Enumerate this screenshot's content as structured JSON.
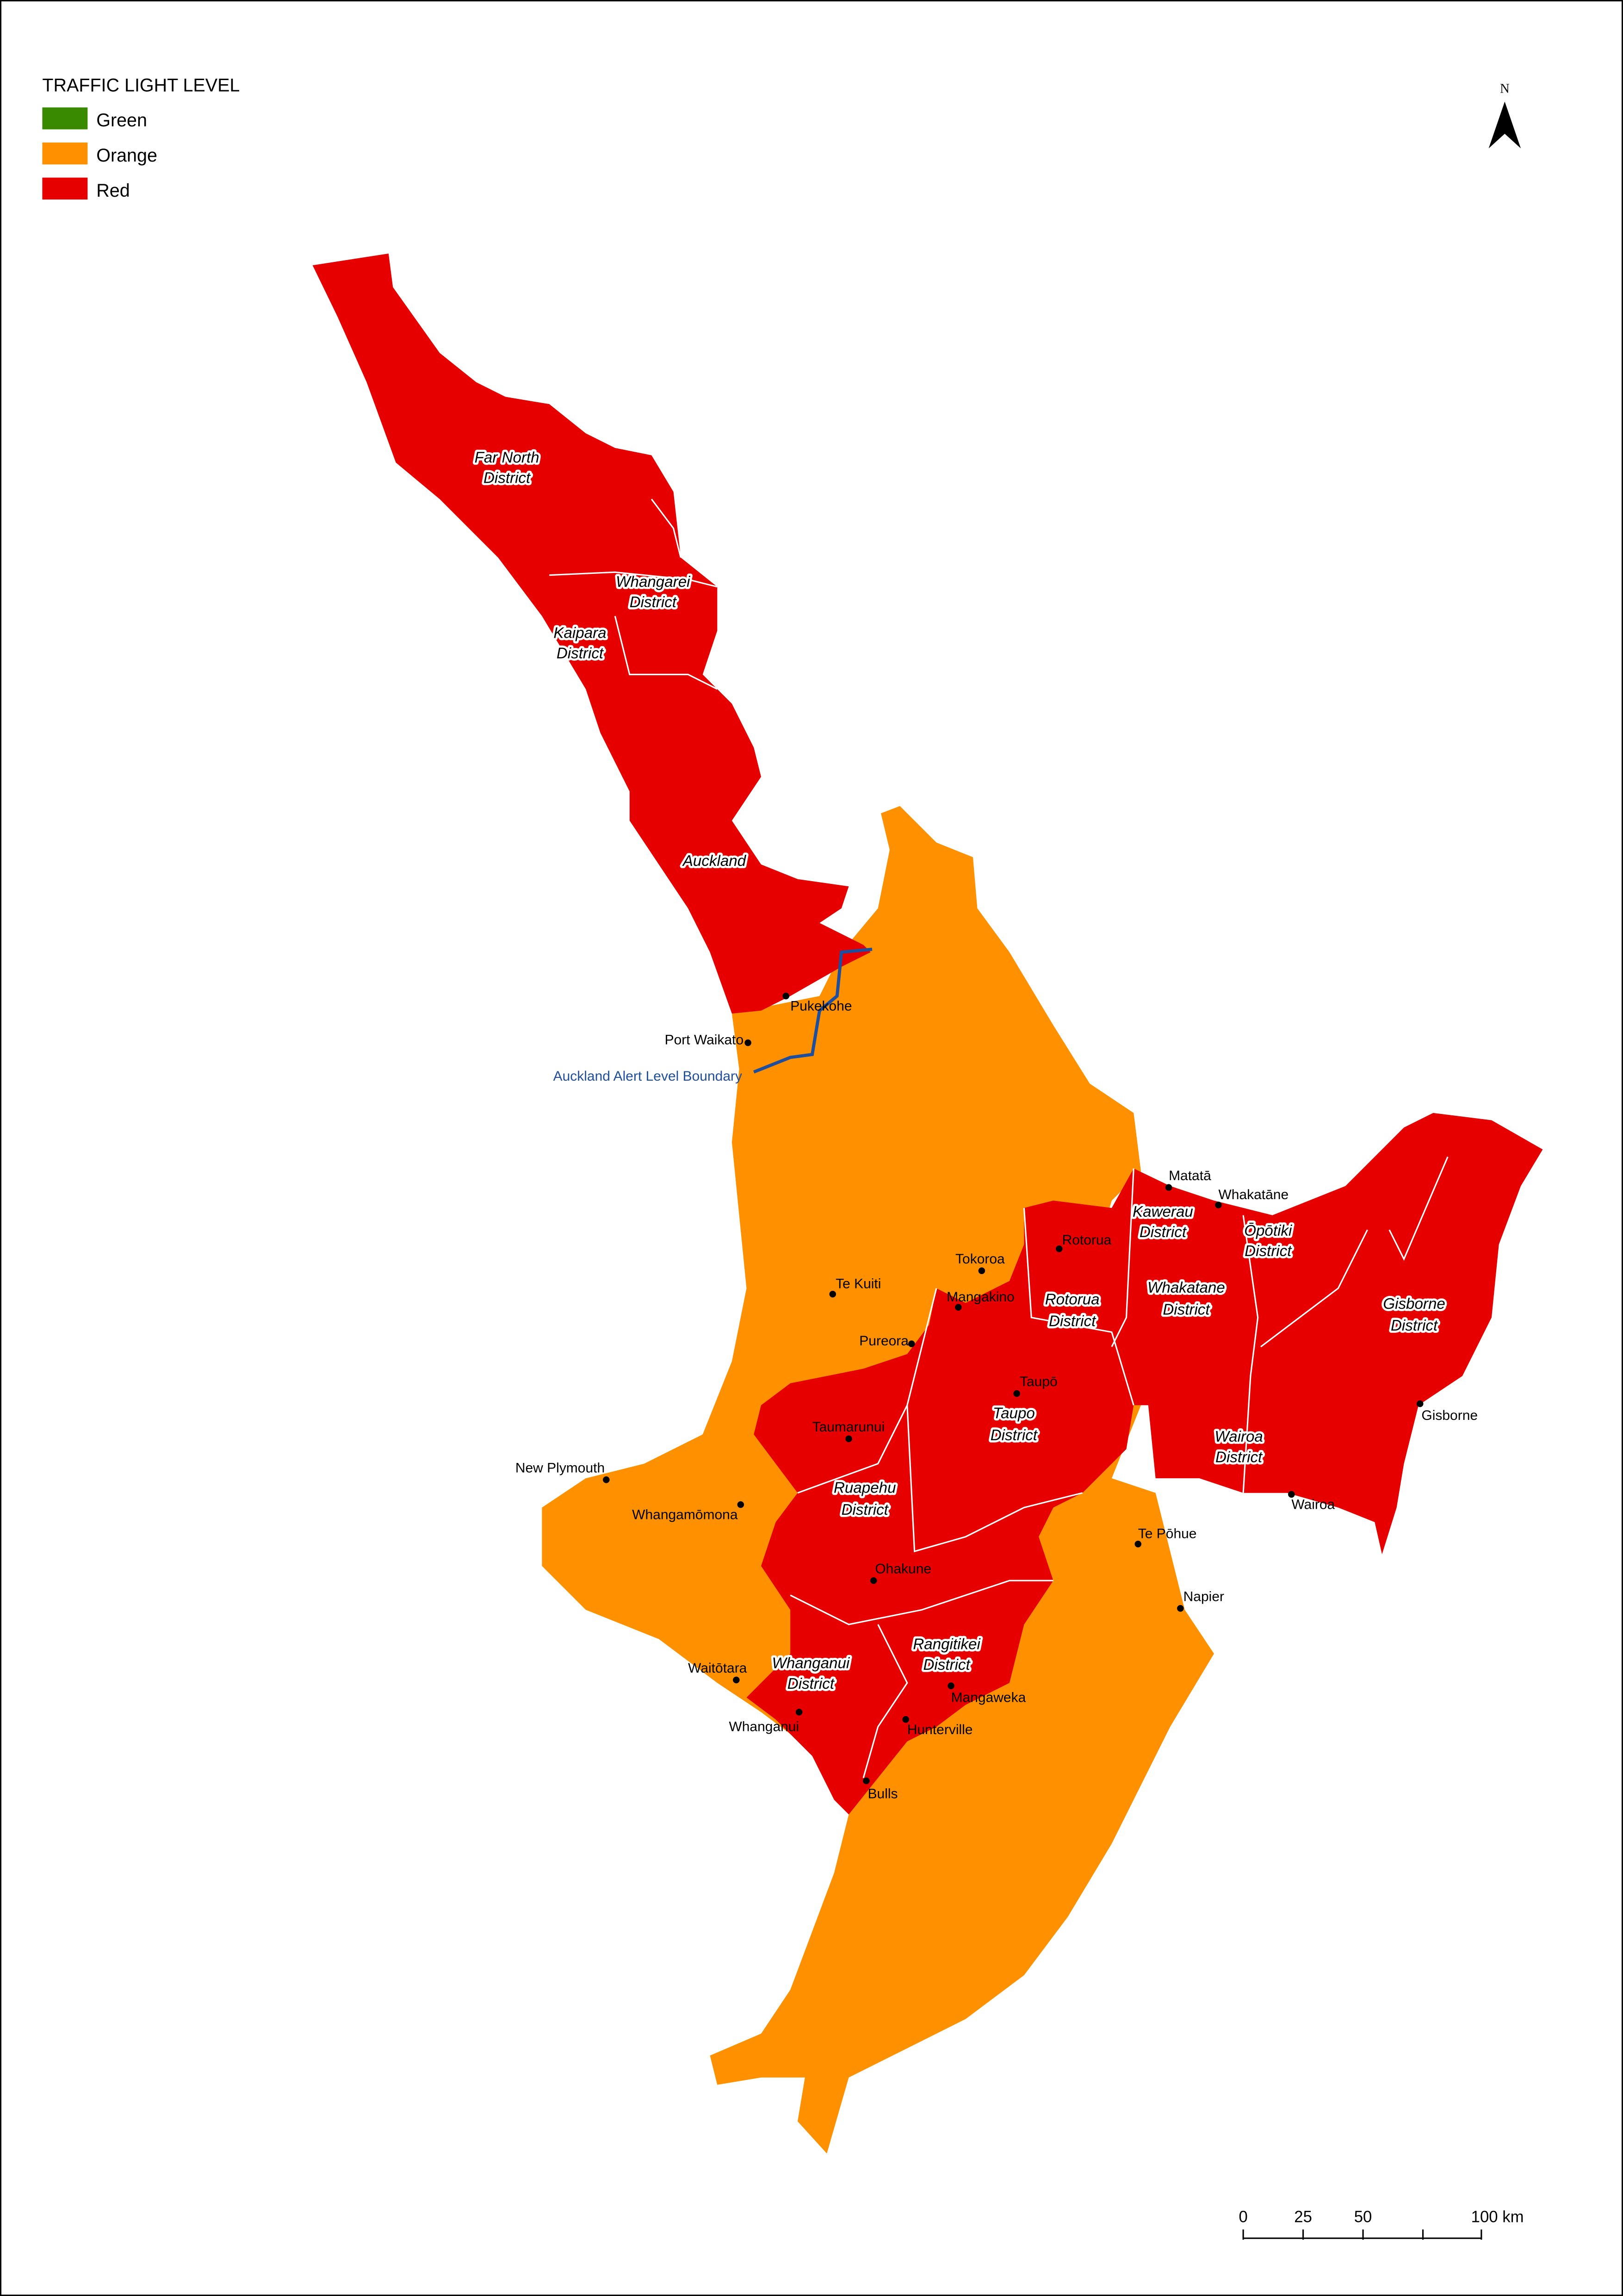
{
  "legend": {
    "title": "TRAFFIC LIGHT LEVEL",
    "items": [
      {
        "label": "Green",
        "color": "#3a8a00"
      },
      {
        "label": "Orange",
        "color": "#ff9100"
      },
      {
        "label": "Red",
        "color": "#e60000"
      }
    ]
  },
  "north_arrow": {
    "label": "N"
  },
  "scale_bar": {
    "labels": [
      "0",
      "25",
      "50",
      "100 km"
    ]
  },
  "boundary": {
    "label": "Auckland Alert Level Boundary",
    "color": "#1f4e9c"
  },
  "districts": [
    {
      "lines": [
        "Far North",
        "District"
      ],
      "level": "Red"
    },
    {
      "lines": [
        "Whangarei",
        "District"
      ],
      "level": "Red"
    },
    {
      "lines": [
        "Kaipara",
        "District"
      ],
      "level": "Red"
    },
    {
      "lines": [
        "Auckland"
      ],
      "level": "Red"
    },
    {
      "lines": [
        "Kawerau",
        "District"
      ],
      "level": "Red"
    },
    {
      "lines": [
        "Rotorua",
        "District"
      ],
      "level": "Red"
    },
    {
      "lines": [
        "Whakatane",
        "District"
      ],
      "level": "Red"
    },
    {
      "lines": [
        "Ōpōtiki",
        "District"
      ],
      "level": "Red"
    },
    {
      "lines": [
        "Gisborne",
        "District"
      ],
      "level": "Red"
    },
    {
      "lines": [
        "Taupo",
        "District"
      ],
      "level": "Red"
    },
    {
      "lines": [
        "Wairoa",
        "District"
      ],
      "level": "Red"
    },
    {
      "lines": [
        "Ruapehu",
        "District"
      ],
      "level": "Red"
    },
    {
      "lines": [
        "Whanganui",
        "District"
      ],
      "level": "Red"
    },
    {
      "lines": [
        "Rangitikei",
        "District"
      ],
      "level": "Red"
    }
  ],
  "places": [
    {
      "name": "Pukekohe"
    },
    {
      "name": "Port Waikato"
    },
    {
      "name": "Te Kuiti"
    },
    {
      "name": "Tokoroa"
    },
    {
      "name": "Mangakino"
    },
    {
      "name": "Pureora"
    },
    {
      "name": "Rotorua"
    },
    {
      "name": "Matatā"
    },
    {
      "name": "Whakatāne"
    },
    {
      "name": "Taupō"
    },
    {
      "name": "Taumarunui"
    },
    {
      "name": "Gisborne"
    },
    {
      "name": "New Plymouth"
    },
    {
      "name": "Whangamōmona"
    },
    {
      "name": "Te Pōhue"
    },
    {
      "name": "Wairoa"
    },
    {
      "name": "Napier"
    },
    {
      "name": "Ohakune"
    },
    {
      "name": "Waitōtara"
    },
    {
      "name": "Mangaweka"
    },
    {
      "name": "Whanganui"
    },
    {
      "name": "Hunterville"
    },
    {
      "name": "Bulls"
    }
  ]
}
